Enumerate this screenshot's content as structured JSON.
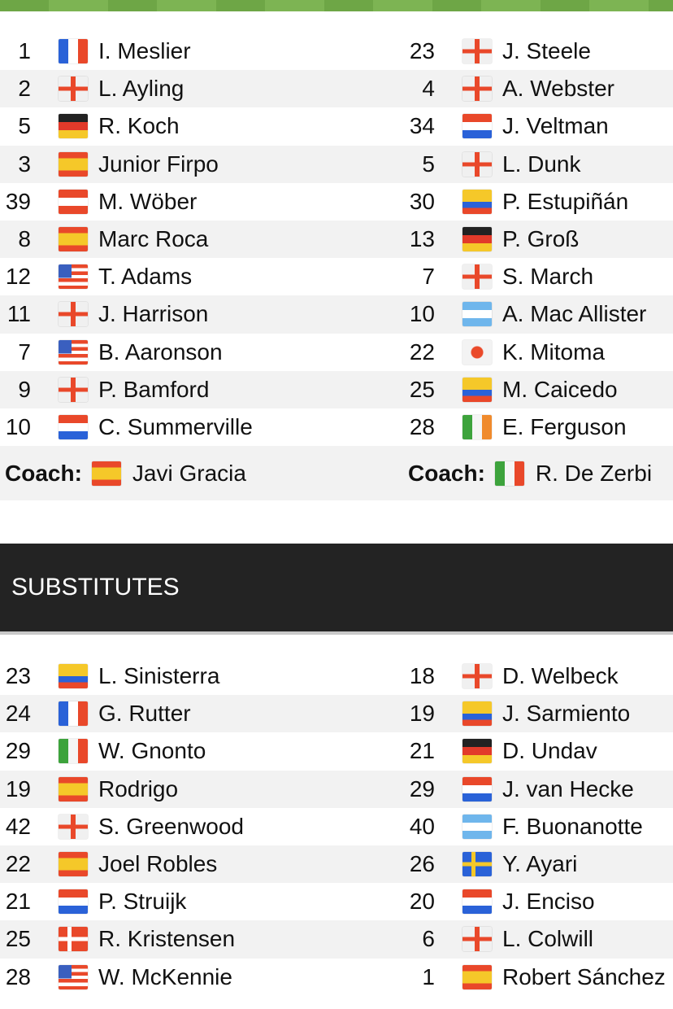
{
  "lineups": {
    "home": [
      {
        "num": "1",
        "flag": "fr",
        "name": "I. Meslier"
      },
      {
        "num": "2",
        "flag": "en",
        "name": "L. Ayling"
      },
      {
        "num": "5",
        "flag": "de",
        "name": "R. Koch"
      },
      {
        "num": "3",
        "flag": "es",
        "name": "Junior Firpo"
      },
      {
        "num": "39",
        "flag": "at",
        "name": "M. Wöber"
      },
      {
        "num": "8",
        "flag": "es",
        "name": "Marc Roca"
      },
      {
        "num": "12",
        "flag": "us",
        "name": "T. Adams"
      },
      {
        "num": "11",
        "flag": "en",
        "name": "J. Harrison"
      },
      {
        "num": "7",
        "flag": "us",
        "name": "B. Aaronson"
      },
      {
        "num": "9",
        "flag": "en",
        "name": "P. Bamford"
      },
      {
        "num": "10",
        "flag": "nl",
        "name": "C. Summerville"
      }
    ],
    "away": [
      {
        "num": "23",
        "flag": "en",
        "name": "J. Steele"
      },
      {
        "num": "4",
        "flag": "en",
        "name": "A. Webster"
      },
      {
        "num": "34",
        "flag": "nl",
        "name": "J. Veltman"
      },
      {
        "num": "5",
        "flag": "en",
        "name": "L. Dunk"
      },
      {
        "num": "30",
        "flag": "ec",
        "name": "P. Estupiñán"
      },
      {
        "num": "13",
        "flag": "de",
        "name": "P. Groß"
      },
      {
        "num": "7",
        "flag": "en",
        "name": "S. March"
      },
      {
        "num": "10",
        "flag": "ar",
        "name": "A. Mac Allister"
      },
      {
        "num": "22",
        "flag": "jp",
        "name": "K. Mitoma"
      },
      {
        "num": "25",
        "flag": "ec",
        "name": "M. Caicedo"
      },
      {
        "num": "28",
        "flag": "ie",
        "name": "E. Ferguson"
      }
    ],
    "coach_label": "Coach:",
    "home_coach": {
      "flag": "es",
      "name": "Javi Gracia"
    },
    "away_coach": {
      "flag": "it",
      "name": "R. De Zerbi"
    }
  },
  "substitutes": {
    "title": "SUBSTITUTES",
    "home": [
      {
        "num": "23",
        "flag": "co",
        "name": "L. Sinisterra"
      },
      {
        "num": "24",
        "flag": "fr",
        "name": "G. Rutter"
      },
      {
        "num": "29",
        "flag": "it",
        "name": "W. Gnonto"
      },
      {
        "num": "19",
        "flag": "es",
        "name": "Rodrigo"
      },
      {
        "num": "42",
        "flag": "en",
        "name": "S. Greenwood"
      },
      {
        "num": "22",
        "flag": "es",
        "name": "Joel Robles"
      },
      {
        "num": "21",
        "flag": "nl",
        "name": "P. Struijk"
      },
      {
        "num": "25",
        "flag": "dk",
        "name": "R. Kristensen"
      },
      {
        "num": "28",
        "flag": "us",
        "name": "W. McKennie"
      }
    ],
    "away": [
      {
        "num": "18",
        "flag": "en",
        "name": "D. Welbeck"
      },
      {
        "num": "19",
        "flag": "ec",
        "name": "J. Sarmiento"
      },
      {
        "num": "21",
        "flag": "de",
        "name": "D. Undav"
      },
      {
        "num": "29",
        "flag": "nl",
        "name": "J. van Hecke"
      },
      {
        "num": "40",
        "flag": "ar",
        "name": "F. Buonanotte"
      },
      {
        "num": "26",
        "flag": "se",
        "name": "Y. Ayari"
      },
      {
        "num": "20",
        "flag": "py",
        "name": "J. Enciso"
      },
      {
        "num": "6",
        "flag": "en",
        "name": "L. Colwill"
      },
      {
        "num": "1",
        "flag": "es",
        "name": "Robert Sánchez"
      }
    ]
  }
}
